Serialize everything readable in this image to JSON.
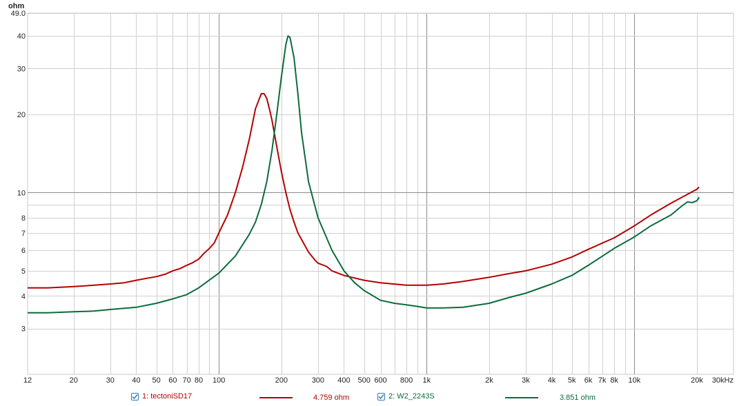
{
  "chart_data": {
    "type": "line",
    "y_unit": "ohm",
    "x_unit": "Hz",
    "x_scale": "log",
    "y_scale": "log",
    "xlim": [
      12,
      30000
    ],
    "ylim": [
      2.0,
      49.0
    ],
    "grid": true,
    "legend_position": "bottom",
    "x_ticks": [
      {
        "v": 12,
        "label": "12"
      },
      {
        "v": 20,
        "label": "20"
      },
      {
        "v": 30,
        "label": "30"
      },
      {
        "v": 40,
        "label": "40"
      },
      {
        "v": 50,
        "label": "50"
      },
      {
        "v": 60,
        "label": "60"
      },
      {
        "v": 70,
        "label": "70"
      },
      {
        "v": 80,
        "label": "80"
      },
      {
        "v": 100,
        "label": "100"
      },
      {
        "v": 200,
        "label": "200"
      },
      {
        "v": 300,
        "label": "300"
      },
      {
        "v": 400,
        "label": "400"
      },
      {
        "v": 500,
        "label": "500"
      },
      {
        "v": 600,
        "label": "600"
      },
      {
        "v": 800,
        "label": "800"
      },
      {
        "v": 1000,
        "label": "1k"
      },
      {
        "v": 2000,
        "label": "2k"
      },
      {
        "v": 3000,
        "label": "3k"
      },
      {
        "v": 4000,
        "label": "4k"
      },
      {
        "v": 5000,
        "label": "5k"
      },
      {
        "v": 6000,
        "label": "6k"
      },
      {
        "v": 7000,
        "label": "7k"
      },
      {
        "v": 8000,
        "label": "8k"
      },
      {
        "v": 10000,
        "label": "10k"
      },
      {
        "v": 20000,
        "label": "20k"
      },
      {
        "v": 30000,
        "label": "30kHz"
      }
    ],
    "x_grid": [
      20,
      30,
      40,
      50,
      60,
      70,
      80,
      90,
      100,
      200,
      300,
      400,
      500,
      600,
      700,
      800,
      900,
      1000,
      2000,
      3000,
      4000,
      5000,
      6000,
      7000,
      8000,
      9000,
      10000,
      20000
    ],
    "x_grid_major": [
      100,
      1000,
      10000
    ],
    "y_ticks": [
      {
        "v": 3,
        "label": "3"
      },
      {
        "v": 4,
        "label": "4"
      },
      {
        "v": 5,
        "label": "5"
      },
      {
        "v": 6,
        "label": "6"
      },
      {
        "v": 7,
        "label": "7"
      },
      {
        "v": 8,
        "label": "8"
      },
      {
        "v": 10,
        "label": "10"
      },
      {
        "v": 20,
        "label": "20"
      },
      {
        "v": 30,
        "label": "30"
      },
      {
        "v": 40,
        "label": "40"
      },
      {
        "v": 49.0,
        "label": "49.0"
      }
    ],
    "y_grid": [
      3,
      4,
      5,
      6,
      7,
      8,
      9,
      10,
      20,
      30,
      40,
      49
    ],
    "y_grid_major": [
      10
    ],
    "series": [
      {
        "name": "1: tectoniSD17",
        "color": "#b30000",
        "x": [
          12,
          15,
          20,
          25,
          30,
          35,
          40,
          45,
          50,
          55,
          60,
          65,
          70,
          75,
          80,
          85,
          90,
          95,
          100,
          110,
          120,
          130,
          140,
          150,
          160,
          165,
          170,
          175,
          180,
          190,
          200,
          210,
          220,
          230,
          240,
          250,
          270,
          290,
          300,
          330,
          350,
          400,
          500,
          600,
          800,
          1000,
          1200,
          1500,
          2000,
          2500,
          3000,
          4000,
          5000,
          6000,
          8000,
          10000,
          12000,
          15000,
          20000,
          20500
        ],
        "y": [
          4.3,
          4.3,
          4.35,
          4.4,
          4.45,
          4.5,
          4.6,
          4.68,
          4.75,
          4.85,
          5.0,
          5.1,
          5.25,
          5.38,
          5.55,
          5.85,
          6.1,
          6.4,
          7.0,
          8.2,
          10.0,
          12.5,
          16.0,
          21.0,
          24.0,
          24.0,
          23.0,
          21.0,
          19.0,
          15.0,
          12.0,
          10.0,
          8.6,
          7.7,
          7.0,
          6.6,
          5.9,
          5.5,
          5.35,
          5.2,
          5.0,
          4.8,
          4.6,
          4.5,
          4.4,
          4.4,
          4.45,
          4.55,
          4.72,
          4.88,
          5.0,
          5.3,
          5.65,
          6.05,
          6.7,
          7.45,
          8.2,
          9.1,
          10.3,
          10.5
        ]
      },
      {
        "name": "2: W2_2243S",
        "color": "#0a6b3a",
        "x": [
          12,
          15,
          20,
          25,
          30,
          40,
          50,
          60,
          70,
          80,
          100,
          120,
          140,
          150,
          160,
          170,
          180,
          190,
          200,
          210,
          215,
          220,
          230,
          240,
          250,
          270,
          300,
          350,
          400,
          450,
          500,
          600,
          700,
          800,
          900,
          1000,
          1200,
          1500,
          2000,
          2500,
          3000,
          4000,
          5000,
          6000,
          8000,
          10000,
          12000,
          15000,
          17000,
          18000,
          19000,
          20000,
          20500
        ],
        "y": [
          3.45,
          3.45,
          3.48,
          3.5,
          3.55,
          3.62,
          3.75,
          3.9,
          4.05,
          4.3,
          4.9,
          5.7,
          6.9,
          7.7,
          9.0,
          11.0,
          14.5,
          20.0,
          28.0,
          37.0,
          40.0,
          39.5,
          33.0,
          24.0,
          17.0,
          11.0,
          8.0,
          6.0,
          5.0,
          4.5,
          4.2,
          3.85,
          3.75,
          3.7,
          3.65,
          3.6,
          3.6,
          3.62,
          3.75,
          3.95,
          4.1,
          4.45,
          4.8,
          5.25,
          6.1,
          6.75,
          7.45,
          8.2,
          8.9,
          9.2,
          9.15,
          9.3,
          9.6
        ]
      }
    ]
  },
  "legend": {
    "items": [
      {
        "label": "1: tectoniSD17",
        "value": "4.759 ohm",
        "color": "#b30000"
      },
      {
        "label": "2: W2_2243S",
        "value": "3.851 ohm",
        "color": "#0a6b3a"
      }
    ]
  }
}
